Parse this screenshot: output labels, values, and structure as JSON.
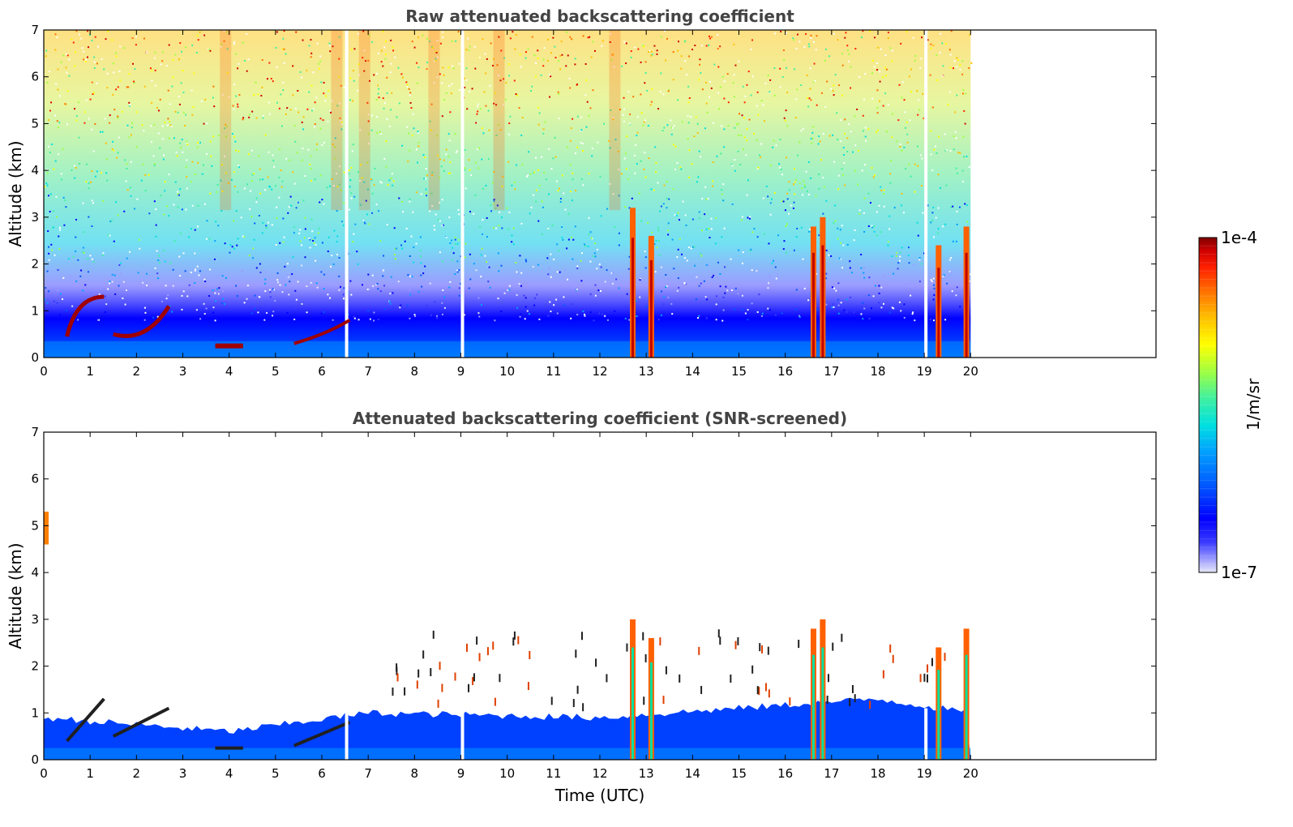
{
  "chart_data": [
    {
      "type": "heatmap",
      "title": "Raw attenuated backscattering coefficient",
      "xlabel": "",
      "ylabel": "Altitude (km)",
      "xlim": [
        0,
        24
      ],
      "ylim": [
        0,
        7
      ],
      "x_ticks": [
        0,
        1,
        2,
        3,
        4,
        5,
        6,
        7,
        8,
        9,
        10,
        11,
        12,
        13,
        14,
        15,
        16,
        17,
        18,
        19,
        20
      ],
      "y_ticks": [
        0,
        1,
        2,
        3,
        4,
        5,
        6,
        7
      ],
      "data_extent_x": [
        0,
        20
      ],
      "features": {
        "background_gradient": "blue near ground (0-1 km) to green/yellow/red speckle aloft (4-7 km)",
        "low_cloud_layers_km": [
          [
            0.2,
            1.4
          ]
        ],
        "cloud_columns_hours": [
          12.7,
          13.1,
          16.6,
          16.8,
          19.3,
          19.9
        ],
        "data_gaps_hours": [
          6.5,
          9.0,
          19.0
        ]
      }
    },
    {
      "type": "heatmap",
      "title": "Attenuated backscattering coefficient (SNR-screened)",
      "xlabel": "Time (UTC)",
      "ylabel": "Altitude (km)",
      "xlim": [
        0,
        24
      ],
      "ylim": [
        0,
        7
      ],
      "x_ticks": [
        0,
        1,
        2,
        3,
        4,
        5,
        6,
        7,
        8,
        9,
        10,
        11,
        12,
        13,
        14,
        15,
        16,
        17,
        18,
        19,
        20
      ],
      "y_ticks": [
        0,
        1,
        2,
        3,
        4,
        5,
        6,
        7
      ],
      "data_extent_x": [
        0,
        20
      ],
      "features": {
        "boundary_layer_top_km": [
          [
            0,
            0.9
          ],
          [
            4,
            0.6
          ],
          [
            7,
            1.0
          ],
          [
            12,
            0.9
          ],
          [
            18,
            1.3
          ],
          [
            20,
            1.0
          ]
        ],
        "cloud_columns_hours": [
          12.7,
          13.1,
          16.6,
          16.8,
          19.3,
          19.9
        ]
      }
    }
  ],
  "colorbar": {
    "min_label": "1e-7",
    "max_label": "1e-4",
    "unit": "1/m/sr",
    "colors": [
      "#e8e8f8",
      "#9c9cff",
      "#3a3aff",
      "#0000ff",
      "#0058ff",
      "#00a0ff",
      "#00e0e0",
      "#40f0a0",
      "#a0ff40",
      "#ffff00",
      "#ffc000",
      "#ff7000",
      "#ff2000",
      "#d00000",
      "#800000"
    ]
  }
}
